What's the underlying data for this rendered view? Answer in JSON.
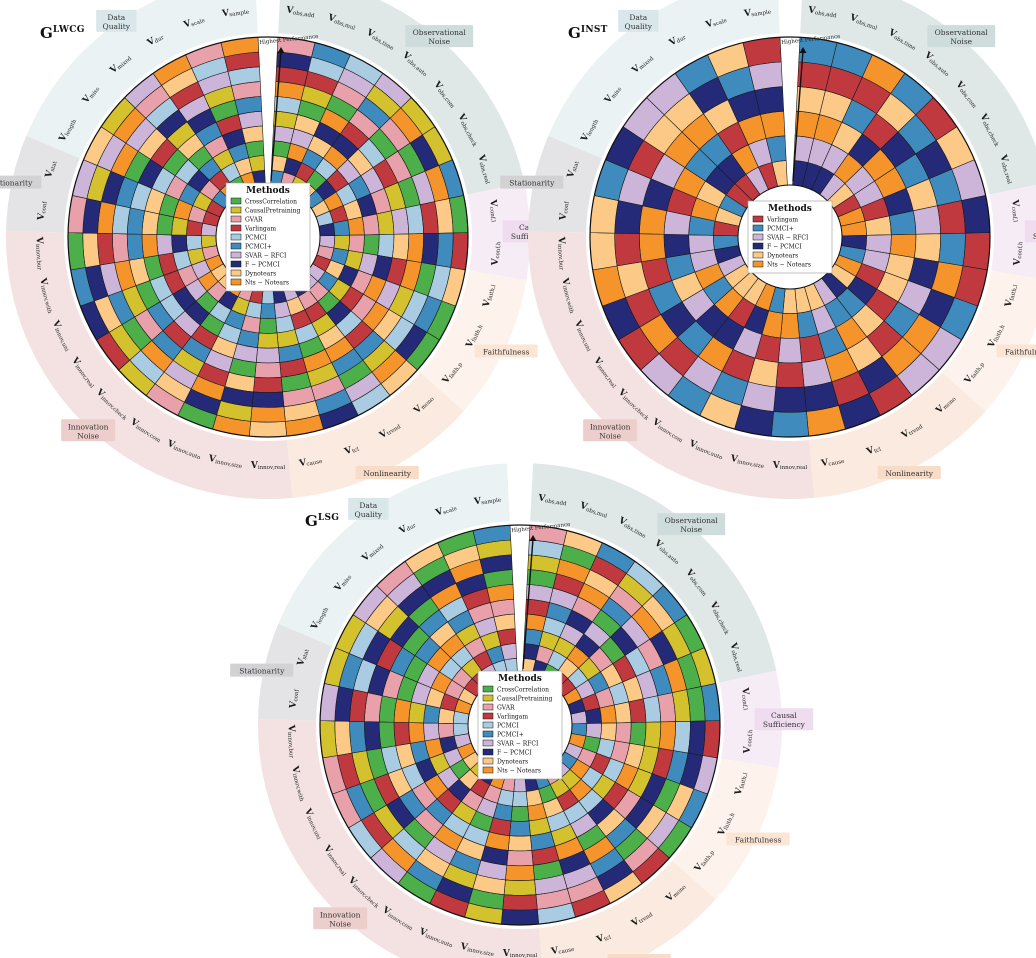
{
  "method_colors": {
    "CrossCorrelation": "#4daf4a",
    "CausalPretraining": "#d4c12e",
    "GVAR": "#e8a1ab",
    "Varlingam": "#c0393f",
    "PCMCI": "#a9cce3",
    "PCMCI+": "#3f8bbd",
    "SVAR − RFCI": "#cdb4d9",
    "F − PCMCI": "#252a78",
    "Dynotears": "#fcca86",
    "Nts − Notears": "#f4942b"
  },
  "legend_title": "Methods",
  "arrow_label": "Highest Performance",
  "annotation": "Highest Performance",
  "groups": [
    {
      "key": "obs",
      "label": "Observational Noise",
      "color": "#dfe7e7",
      "label_bg": "#cfdcdc"
    },
    {
      "key": "caus",
      "label": "Causal Sufficiency",
      "color": "#f6ecf6",
      "label_bg": "#efdcef"
    },
    {
      "key": "faith",
      "label": "Faithfulness",
      "color": "#fdf3ec",
      "label_bg": "#fbe6d6"
    },
    {
      "key": "nonlin",
      "label": "Nonlinearity",
      "color": "#fbeadf",
      "label_bg": "#f8dcc7"
    },
    {
      "key": "innov",
      "label": "Innovation Noise",
      "color": "#f4e2e2",
      "label_bg": "#eccfcd"
    },
    {
      "key": "stat",
      "label": "Stationarity",
      "color": "#e4e4e6",
      "label_bg": "#d2d2d5"
    },
    {
      "key": "dq",
      "label": "Data Quality",
      "color": "#eaf2f4",
      "label_bg": "#d9e6ea"
    }
  ],
  "spokes": [
    {
      "label": "V_obs,add",
      "group": "obs"
    },
    {
      "label": "V_obs,mul",
      "group": "obs"
    },
    {
      "label": "V_obs,time",
      "group": "obs"
    },
    {
      "label": "V_obs,auto",
      "group": "obs"
    },
    {
      "label": "V_obs,com",
      "group": "obs"
    },
    {
      "label": "V_obs,check",
      "group": "obs"
    },
    {
      "label": "V_obs,real",
      "group": "obs"
    },
    {
      "label": "V_conf,l",
      "group": "caus"
    },
    {
      "label": "V_conf,h",
      "group": "caus"
    },
    {
      "label": "V_faith,l",
      "group": "faith"
    },
    {
      "label": "V_faith,h",
      "group": "faith"
    },
    {
      "label": "V_faith,p",
      "group": "faith"
    },
    {
      "label": "V_mono",
      "group": "nonlin"
    },
    {
      "label": "V_trend",
      "group": "nonlin"
    },
    {
      "label": "V_tcl",
      "group": "nonlin"
    },
    {
      "label": "V_cause",
      "group": "nonlin"
    },
    {
      "label": "V_innov,real",
      "group": "innov"
    },
    {
      "label": "V_innov,size",
      "group": "innov"
    },
    {
      "label": "V_innov,auto",
      "group": "innov"
    },
    {
      "label": "V_innov,com",
      "group": "innov"
    },
    {
      "label": "V_innov,check",
      "group": "innov"
    },
    {
      "label": "V_innov,real",
      "group": "innov"
    },
    {
      "label": "V_innov,uni",
      "group": "innov"
    },
    {
      "label": "V_innov,with",
      "group": "innov"
    },
    {
      "label": "V_innov,bur",
      "group": "innov"
    },
    {
      "label": "V_conf",
      "group": "stat"
    },
    {
      "label": "V_stat",
      "group": "stat"
    },
    {
      "label": "V_length",
      "group": "dq"
    },
    {
      "label": "V_miss",
      "group": "dq"
    },
    {
      "label": "V_mixed",
      "group": "dq"
    },
    {
      "label": "V_dur",
      "group": "dq"
    },
    {
      "label": "V_scale",
      "group": "dq"
    },
    {
      "label": "V_sample",
      "group": "dq"
    }
  ],
  "panels": [
    {
      "title_main": "G",
      "title_sup": "LWCG",
      "methods": [
        "CrossCorrelation",
        "CausalPretraining",
        "GVAR",
        "Varlingam",
        "PCMCI",
        "PCMCI+",
        "SVAR − RFCI",
        "F − PCMCI",
        "Dynotears",
        "Nts − Notears"
      ],
      "seed": 17
    },
    {
      "title_main": "G",
      "title_sup": "INST",
      "methods": [
        "Varlingam",
        "PCMCI+",
        "SVAR − RFCI",
        "F − PCMCI",
        "Dynotears",
        "Nts − Notears"
      ],
      "seed": 53
    },
    {
      "title_main": "G",
      "title_sup": "LSG",
      "methods": [
        "CrossCorrelation",
        "CausalPretraining",
        "GVAR",
        "Varlingam",
        "PCMCI",
        "PCMCI+",
        "SVAR − RFCI",
        "F − PCMCI",
        "Dynotears",
        "Nts − Notears"
      ],
      "seed": 91
    }
  ]
}
